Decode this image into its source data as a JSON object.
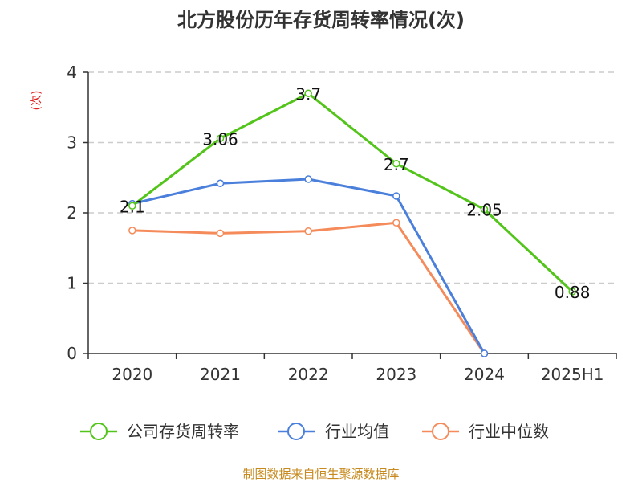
{
  "chart_data": {
    "type": "line",
    "title": "北方股份历年存货周转率情况(次)",
    "ylabel": "(次)",
    "ylim": [
      0,
      4
    ],
    "yticks": [
      0,
      1,
      2,
      3,
      4
    ],
    "grid": true,
    "legend_position": "bottom",
    "categories": [
      "2020",
      "2021",
      "2022",
      "2023",
      "2024",
      "2025H1"
    ],
    "series": [
      {
        "name": "公司存货周转率",
        "color": "#52c41a",
        "values": [
          2.1,
          3.06,
          3.7,
          2.7,
          2.05,
          0.88
        ],
        "labels": [
          "2.1",
          "3.06",
          "3.7",
          "2.7",
          "2.05",
          "0.88"
        ]
      },
      {
        "name": "行业均值",
        "color": "#4a7fdc",
        "values": [
          2.13,
          2.42,
          2.48,
          2.24,
          0,
          null
        ]
      },
      {
        "name": "行业中位数",
        "color": "#f58b5a",
        "values": [
          1.75,
          1.71,
          1.74,
          1.86,
          0,
          null
        ]
      }
    ],
    "source": "制图数据来自恒生聚源数据库"
  },
  "colors": {
    "ylabel": "#e02020",
    "source": "#c88a1e",
    "axis": "#333333",
    "grid": "#cccccc"
  }
}
